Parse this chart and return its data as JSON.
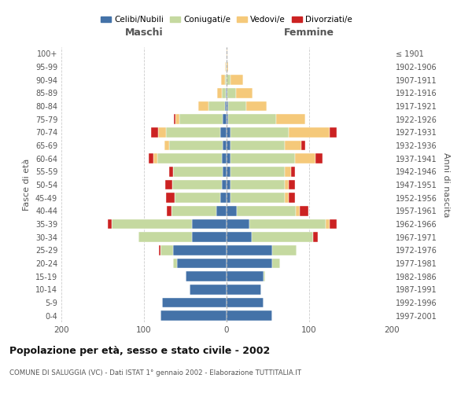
{
  "age_groups": [
    "0-4",
    "5-9",
    "10-14",
    "15-19",
    "20-24",
    "25-29",
    "30-34",
    "35-39",
    "40-44",
    "45-49",
    "50-54",
    "55-59",
    "60-64",
    "65-69",
    "70-74",
    "75-79",
    "80-84",
    "85-89",
    "90-94",
    "95-99",
    "100+"
  ],
  "birth_years": [
    "1997-2001",
    "1992-1996",
    "1987-1991",
    "1982-1986",
    "1977-1981",
    "1972-1976",
    "1967-1971",
    "1962-1966",
    "1957-1961",
    "1952-1956",
    "1947-1951",
    "1942-1946",
    "1937-1941",
    "1932-1936",
    "1927-1931",
    "1922-1926",
    "1917-1921",
    "1912-1916",
    "1907-1911",
    "1902-1906",
    "≤ 1901"
  ],
  "colors": {
    "celibi": "#4472a8",
    "coniugati": "#c5d9a0",
    "vedovi": "#f5c97a",
    "divorziati": "#cc2222"
  },
  "male": {
    "celibi": [
      80,
      78,
      45,
      50,
      60,
      65,
      42,
      42,
      12,
      8,
      6,
      5,
      6,
      5,
      8,
      5,
      2,
      1,
      0,
      0,
      0
    ],
    "coniugati": [
      0,
      0,
      0,
      0,
      5,
      15,
      65,
      97,
      55,
      55,
      60,
      60,
      78,
      65,
      65,
      52,
      20,
      5,
      2,
      1,
      0
    ],
    "vedovi": [
      0,
      0,
      0,
      0,
      0,
      0,
      0,
      0,
      0,
      0,
      0,
      0,
      5,
      5,
      10,
      5,
      12,
      5,
      5,
      1,
      0
    ],
    "divorziati": [
      0,
      0,
      0,
      0,
      0,
      2,
      0,
      5,
      5,
      10,
      8,
      5,
      5,
      0,
      8,
      2,
      0,
      0,
      0,
      0,
      0
    ]
  },
  "female": {
    "celibi": [
      55,
      45,
      42,
      45,
      55,
      55,
      30,
      28,
      12,
      5,
      5,
      5,
      5,
      5,
      5,
      2,
      2,
      1,
      0,
      0,
      0
    ],
    "coniugati": [
      0,
      0,
      0,
      2,
      10,
      30,
      75,
      92,
      72,
      65,
      65,
      65,
      78,
      65,
      70,
      58,
      22,
      10,
      5,
      0,
      0
    ],
    "vedovi": [
      0,
      0,
      0,
      0,
      0,
      0,
      0,
      5,
      5,
      5,
      5,
      8,
      25,
      20,
      50,
      35,
      25,
      20,
      15,
      2,
      1
    ],
    "divorziati": [
      0,
      0,
      0,
      0,
      0,
      0,
      5,
      8,
      10,
      8,
      8,
      5,
      8,
      5,
      8,
      0,
      0,
      0,
      0,
      0,
      0
    ]
  },
  "xlim": 200,
  "title": "Popolazione per età, sesso e stato civile - 2002",
  "subtitle": "COMUNE DI SALUGGIA (VC) - Dati ISTAT 1° gennaio 2002 - Elaborazione TUTTITALIA.IT",
  "ylabel": "Fasce di età",
  "ylabel_right": "Anni di nascita",
  "xlabel_left": "Maschi",
  "xlabel_right": "Femmine"
}
